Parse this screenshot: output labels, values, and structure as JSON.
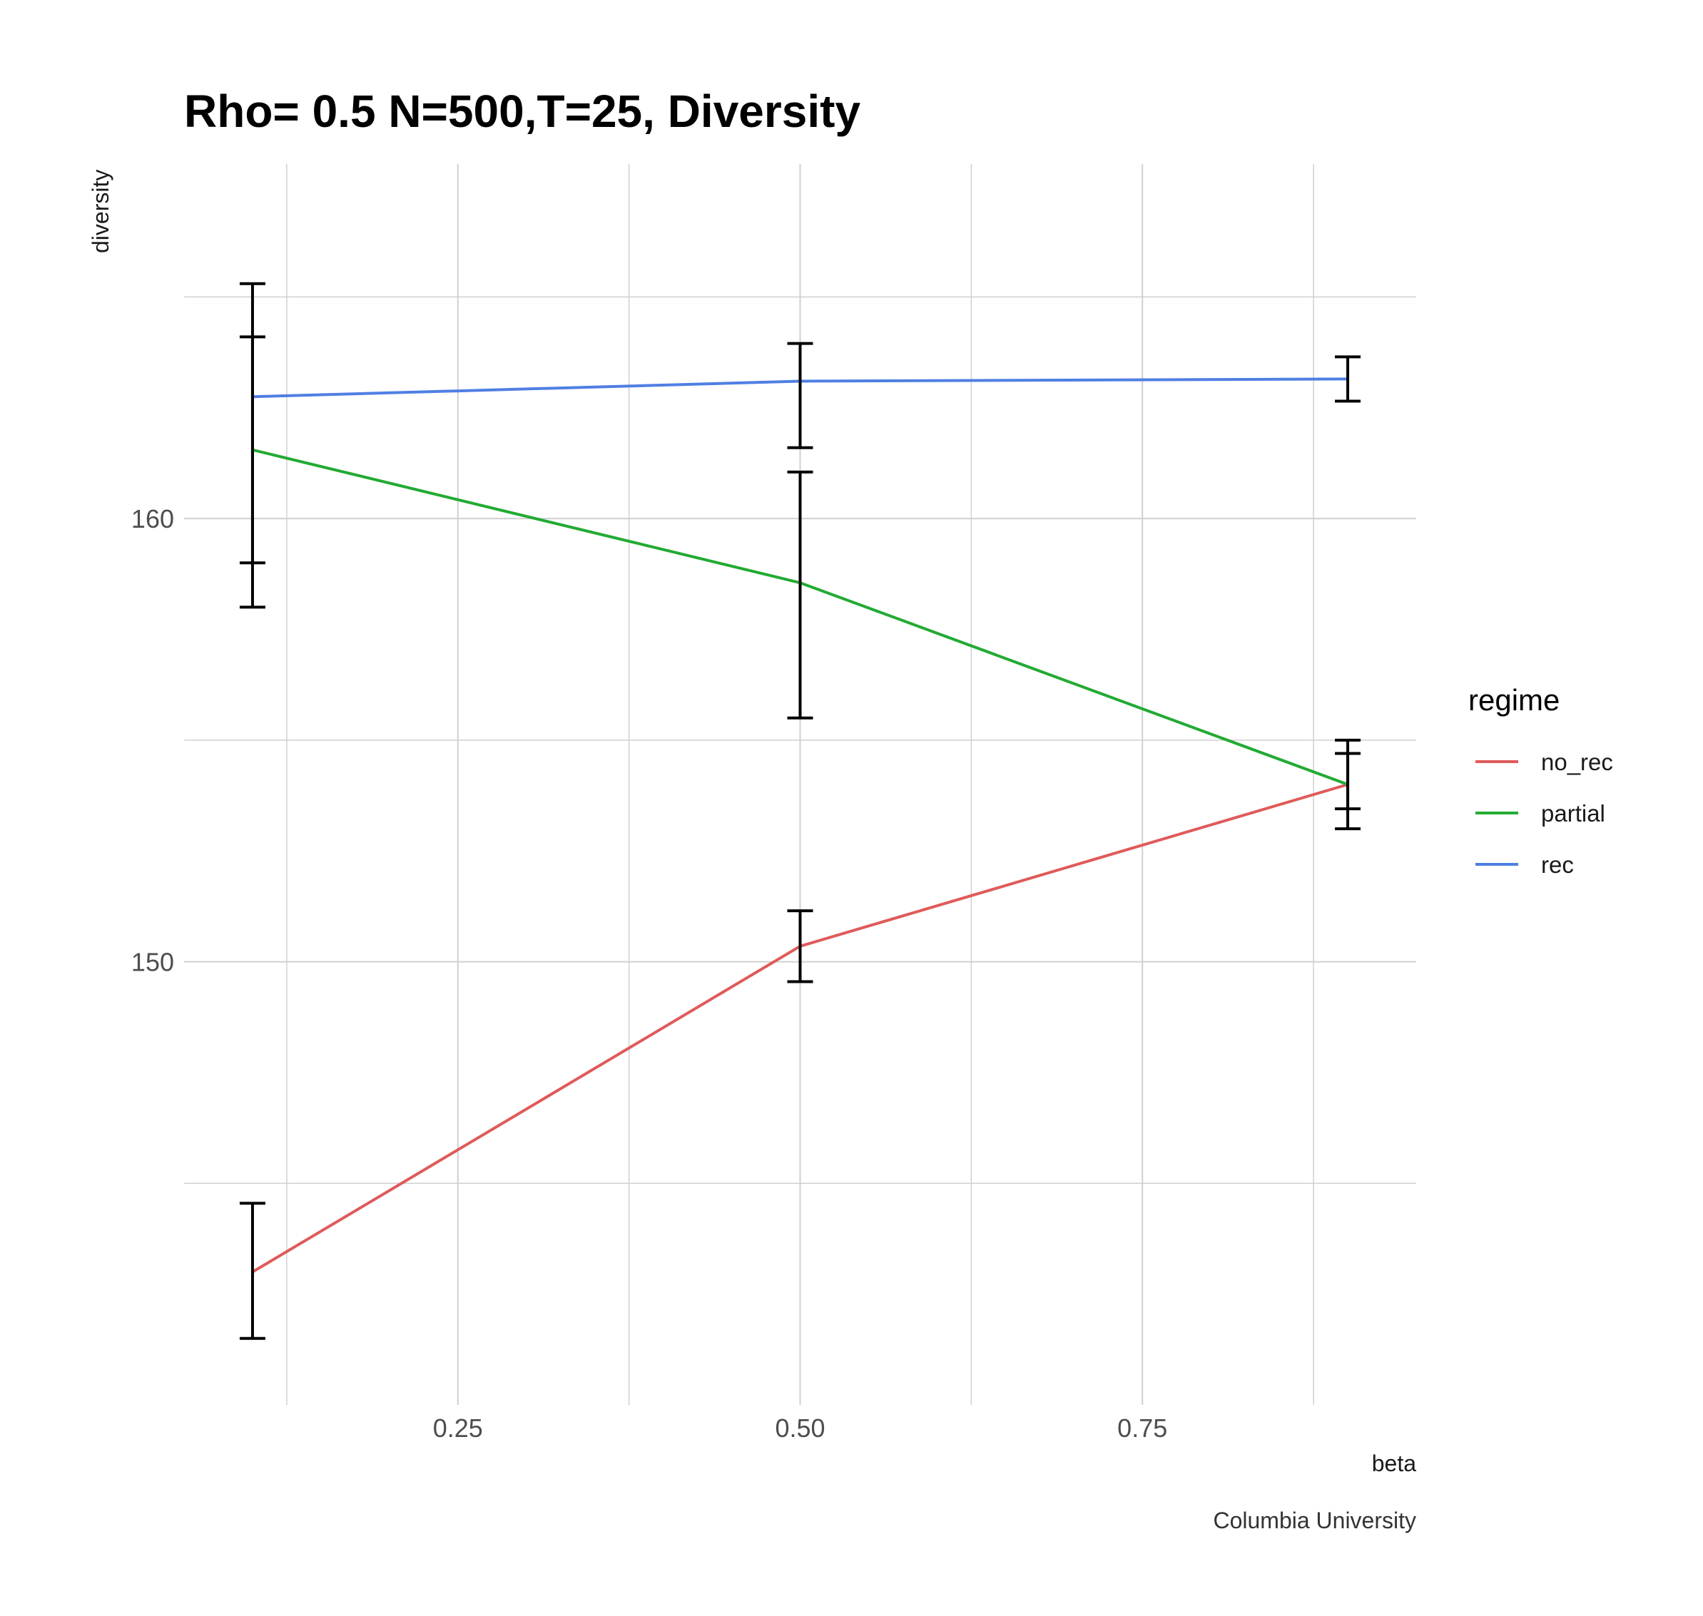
{
  "chart_data": {
    "type": "line",
    "title": "Rho= 0.5 N=500,T=25, Diversity",
    "xlabel": "beta",
    "ylabel": "diversity",
    "caption": "Columbia University",
    "x": [
      0.1,
      0.5,
      0.9
    ],
    "x_ticks": [
      0.25,
      0.5,
      0.75
    ],
    "x_tick_labels": [
      "0.25",
      "0.50",
      "0.75"
    ],
    "y_ticks": [
      150,
      160
    ],
    "y_tick_labels": [
      "150",
      "160"
    ],
    "xlim": [
      0.05,
      0.95
    ],
    "ylim": [
      140,
      168
    ],
    "grid": true,
    "legend": {
      "title": "regime",
      "position": "right"
    },
    "series": [
      {
        "name": "no_rec",
        "color": "#E05A5A",
        "values": [
          143.0,
          150.35,
          154.0
        ],
        "error_low": [
          141.5,
          149.55,
          153.45
        ],
        "error_high": [
          144.55,
          151.15,
          154.7
        ]
      },
      {
        "name": "partial",
        "color": "#22AA33",
        "values": [
          161.55,
          158.55,
          154.0
        ],
        "error_low": [
          159.0,
          155.5,
          153.0
        ],
        "error_high": [
          164.1,
          161.05,
          155.0
        ]
      },
      {
        "name": "rec",
        "color": "#4F7FE3",
        "values": [
          162.75,
          163.1,
          163.15
        ],
        "error_low": [
          158.0,
          161.6,
          162.65
        ],
        "error_high": [
          165.3,
          163.95,
          163.65
        ]
      }
    ]
  }
}
